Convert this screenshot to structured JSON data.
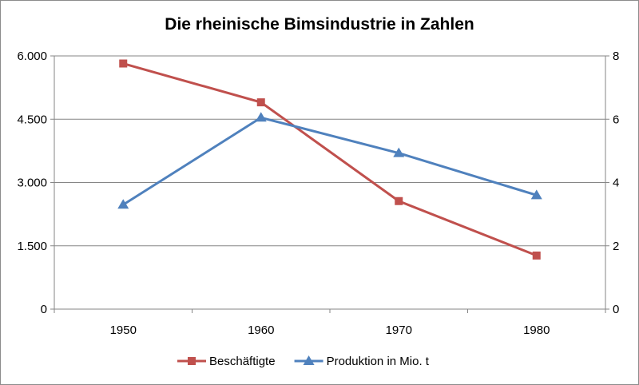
{
  "chart_data": {
    "type": "line",
    "title": "Die rheinische Bimsindustrie in Zahlen",
    "categories": [
      "1950",
      "1960",
      "1970",
      "1980"
    ],
    "y_left": {
      "min": 0,
      "max": 6000,
      "ticks": [
        0,
        1500,
        3000,
        4500,
        6000
      ],
      "tick_labels": [
        "0",
        "1.500",
        "3.000",
        "4.500",
        "6.000"
      ]
    },
    "y_right": {
      "min": 0,
      "max": 8,
      "ticks": [
        0,
        2,
        4,
        6,
        8
      ],
      "tick_labels": [
        "0",
        "2",
        "4",
        "6",
        "8"
      ]
    },
    "grid": true,
    "legend_position": "bottom",
    "series": [
      {
        "name": "Beschäftigte",
        "axis": "left",
        "color": "#c0504d",
        "marker": "square",
        "values": [
          5820,
          4900,
          2560,
          1270
        ]
      },
      {
        "name": "Produktion in Mio. t",
        "axis": "right",
        "color": "#4f81bd",
        "marker": "triangle",
        "values": [
          3.3,
          6.05,
          4.93,
          3.6
        ]
      }
    ]
  }
}
